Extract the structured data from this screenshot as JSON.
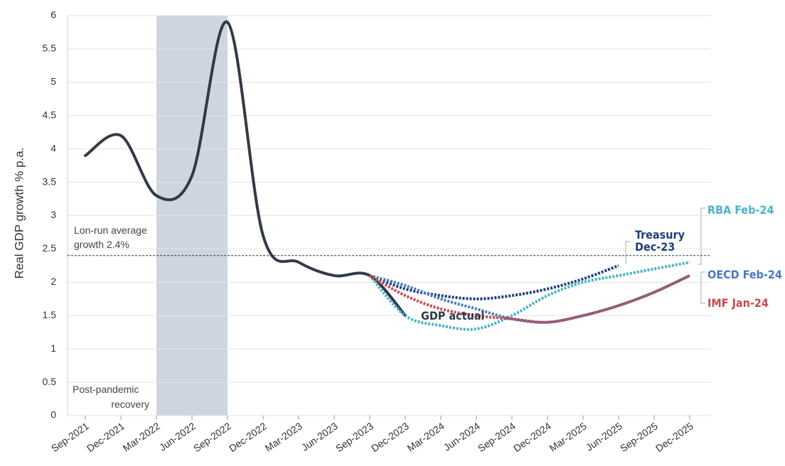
{
  "chart_data": {
    "type": "line",
    "y_label": "Real GDP growth % p.a.",
    "categories": [
      "Sep-2021",
      "Dec-2021",
      "Mar-2022",
      "Jun-2022",
      "Sep-2022",
      "Dec-2022",
      "Mar-2023",
      "Jun-2023",
      "Sep-2023",
      "Dec-2023",
      "Mar-2024",
      "Jun-2024",
      "Sep-2024",
      "Dec-2024",
      "Mar-2025",
      "Jun-2025",
      "Sep-2025",
      "Dec-2025"
    ],
    "ylim": [
      0,
      6
    ],
    "yticks": [
      0,
      0.5,
      1,
      1.5,
      2,
      2.5,
      3,
      3.5,
      4,
      4.5,
      5,
      5.5,
      6
    ],
    "grid": true,
    "reference_line": {
      "value": 2.4,
      "label_lines": [
        "Lon-run average",
        "growth 2.4%"
      ]
    },
    "shade": {
      "from": "Mar-2022",
      "to": "Sep-2022",
      "label_lines": [
        "Post-pandemic",
        "recovery"
      ]
    },
    "series": [
      {
        "name": "GDP actual",
        "color": "#333a47",
        "dashed": false,
        "values": [
          3.9,
          4.2,
          3.3,
          3.6,
          5.9,
          2.7,
          2.3,
          2.1,
          2.1,
          1.5,
          null,
          null,
          null,
          null,
          null,
          null,
          null,
          null
        ]
      },
      {
        "name": "Treasury Dec-23",
        "color": "#1f3f7a",
        "dashed": true,
        "values": [
          null,
          null,
          null,
          null,
          null,
          null,
          null,
          null,
          2.1,
          1.9,
          1.8,
          1.75,
          1.8,
          1.9,
          2.05,
          2.25,
          null,
          null
        ]
      },
      {
        "name": "RBA Feb-24",
        "color": "#4cb3c8",
        "dashed": true,
        "values": [
          null,
          null,
          null,
          null,
          null,
          null,
          null,
          null,
          2.1,
          1.5,
          1.35,
          1.3,
          1.5,
          1.8,
          2.0,
          2.1,
          2.2,
          2.3
        ]
      },
      {
        "name": "OECD Feb-24",
        "color": "#4a78c0",
        "dashed": true,
        "values": [
          null,
          null,
          null,
          null,
          null,
          null,
          null,
          null,
          2.1,
          1.95,
          1.75,
          1.6,
          1.45,
          1.4,
          1.5,
          1.65,
          1.85,
          2.1
        ]
      },
      {
        "name": "IMF Jan-24",
        "color": "#c84a4a",
        "dashed": true,
        "values": [
          null,
          null,
          null,
          null,
          null,
          null,
          null,
          null,
          2.1,
          1.8,
          1.6,
          1.5,
          1.45,
          1.4,
          1.5,
          1.65,
          1.85,
          2.1
        ]
      }
    ]
  }
}
